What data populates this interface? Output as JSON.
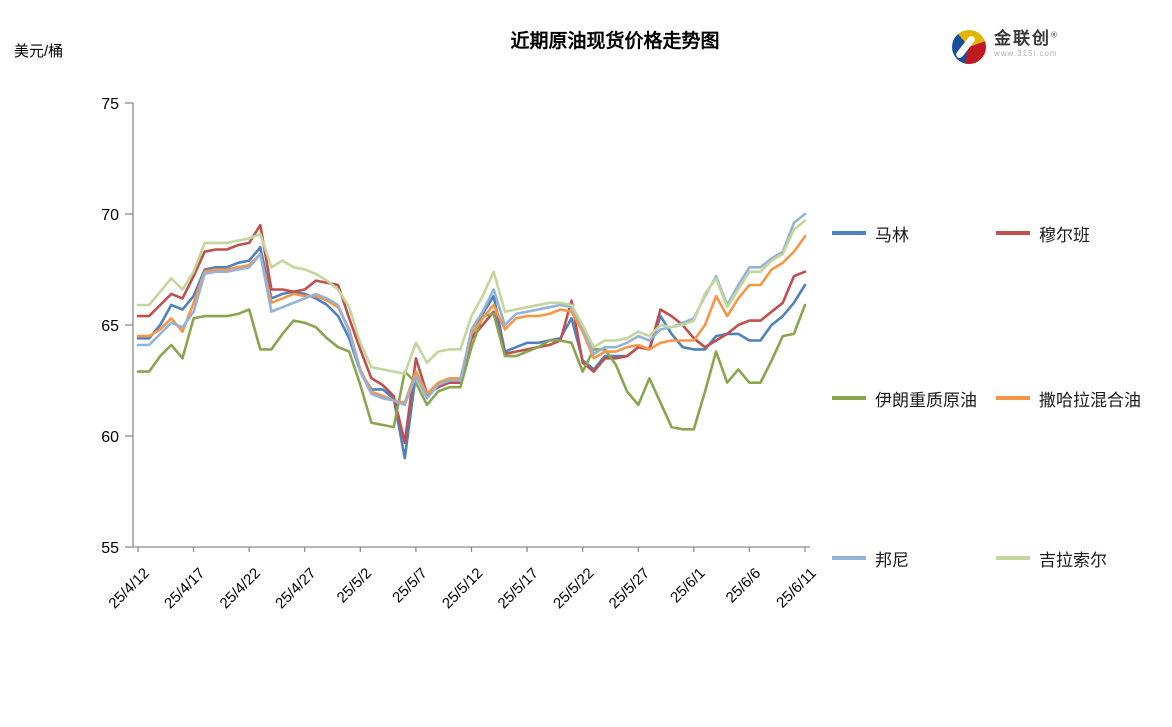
{
  "header": {
    "unit_label": "美元/桶"
  },
  "logo": {
    "name": "金联创",
    "reg": "®",
    "url": "www.315i.com",
    "colors": {
      "blue": "#1A4E9C",
      "yellow": "#E3B505",
      "red": "#C01920"
    }
  },
  "chart_data": {
    "type": "line",
    "title": "近期原油现货价格走势图",
    "ylabel": "美元/桶",
    "xlabel": "",
    "ylim": [
      55,
      75
    ],
    "yticks": [
      55,
      60,
      65,
      70,
      75
    ],
    "grid": false,
    "legend_position": "right",
    "x_tick_every": 5,
    "x_tick_labels": [
      "25/4/12",
      "25/4/17",
      "25/4/22",
      "25/4/27",
      "25/5/2",
      "25/5/7",
      "25/5/12",
      "25/5/17",
      "25/5/22",
      "25/5/27",
      "25/6/1",
      "25/6/6",
      "25/6/11"
    ],
    "axis_color": "#8C8C8C",
    "series": [
      {
        "name": "马林",
        "color": "#4F81BD",
        "values": [
          64.4,
          64.4,
          65.0,
          65.9,
          65.7,
          66.3,
          67.5,
          67.6,
          67.6,
          67.8,
          67.9,
          68.5,
          66.2,
          66.4,
          66.5,
          66.4,
          66.2,
          65.9,
          65.4,
          64.4,
          62.9,
          62.1,
          62.1,
          61.7,
          59.0,
          62.8,
          61.8,
          62.3,
          62.5,
          62.5,
          64.5,
          65.5,
          66.3,
          63.8,
          64.0,
          64.2,
          64.2,
          64.3,
          64.4,
          65.3,
          63.4,
          63.0,
          63.6,
          63.6,
          63.6,
          64.0,
          63.9,
          65.4,
          64.6,
          64.0,
          63.9,
          63.9,
          64.5,
          64.6,
          64.6,
          64.3,
          64.3,
          65.0,
          65.4,
          66.0,
          66.8
        ]
      },
      {
        "name": "穆尔班",
        "color": "#C0504D",
        "values": [
          65.4,
          65.4,
          65.9,
          66.4,
          66.2,
          67.2,
          68.3,
          68.4,
          68.4,
          68.6,
          68.7,
          69.5,
          66.6,
          66.6,
          66.5,
          66.6,
          67.0,
          66.9,
          66.8,
          65.3,
          63.9,
          62.6,
          62.3,
          61.8,
          59.7,
          63.5,
          61.9,
          62.2,
          62.4,
          62.4,
          64.4,
          65.0,
          65.6,
          63.7,
          63.8,
          63.9,
          64.0,
          64.1,
          64.3,
          66.1,
          63.3,
          62.9,
          63.5,
          63.5,
          63.6,
          64.0,
          63.9,
          65.7,
          65.4,
          65.0,
          64.4,
          64.0,
          64.3,
          64.6,
          65.0,
          65.2,
          65.2,
          65.6,
          66.0,
          67.2,
          67.4
        ]
      },
      {
        "name": "伊朗重质原油",
        "color": "#89A54E",
        "values": [
          62.9,
          62.9,
          63.6,
          64.1,
          63.5,
          65.3,
          65.4,
          65.4,
          65.4,
          65.5,
          65.7,
          63.9,
          63.9,
          64.6,
          65.2,
          65.1,
          64.9,
          64.4,
          64.0,
          63.8,
          62.3,
          60.6,
          60.5,
          60.4,
          62.9,
          62.4,
          61.4,
          62.0,
          62.2,
          62.2,
          64.0,
          65.4,
          65.5,
          63.6,
          63.6,
          63.8,
          64.0,
          64.3,
          64.3,
          64.2,
          62.9,
          63.9,
          63.9,
          63.2,
          62.0,
          61.4,
          62.6,
          61.5,
          60.4,
          60.3,
          60.3,
          62.0,
          63.8,
          62.4,
          63.0,
          62.4,
          62.4,
          63.4,
          64.5,
          64.6,
          65.9
        ]
      },
      {
        "name": "撒哈拉混合油",
        "color": "#F79646",
        "values": [
          64.5,
          64.5,
          64.8,
          65.3,
          64.7,
          66.0,
          67.4,
          67.5,
          67.5,
          67.6,
          67.7,
          68.2,
          66.0,
          66.2,
          66.4,
          66.3,
          66.3,
          66.1,
          65.8,
          64.8,
          63.0,
          62.0,
          61.8,
          61.6,
          61.5,
          62.9,
          61.9,
          62.4,
          62.6,
          62.6,
          64.6,
          65.3,
          65.9,
          64.8,
          65.3,
          65.4,
          65.4,
          65.5,
          65.7,
          65.6,
          64.7,
          63.5,
          63.8,
          63.8,
          64.0,
          64.1,
          63.9,
          64.2,
          64.3,
          64.3,
          64.3,
          65.0,
          66.3,
          65.4,
          66.2,
          66.8,
          66.8,
          67.5,
          67.8,
          68.3,
          69.0
        ]
      },
      {
        "name": "邦尼",
        "color": "#95B3D7",
        "values": [
          64.1,
          64.1,
          64.6,
          65.1,
          64.9,
          65.6,
          67.3,
          67.4,
          67.4,
          67.5,
          67.6,
          68.2,
          65.6,
          65.8,
          66.0,
          66.2,
          66.4,
          66.2,
          65.9,
          64.7,
          62.9,
          61.9,
          61.7,
          61.6,
          61.4,
          62.7,
          61.7,
          62.3,
          62.5,
          62.5,
          64.8,
          65.6,
          66.6,
          65.0,
          65.5,
          65.6,
          65.7,
          65.8,
          65.9,
          65.8,
          64.9,
          63.7,
          64.0,
          64.0,
          64.2,
          64.5,
          64.3,
          64.8,
          64.9,
          65.1,
          65.3,
          66.3,
          67.2,
          65.9,
          66.8,
          67.6,
          67.6,
          68.0,
          68.3,
          69.6,
          70.0
        ]
      },
      {
        "name": "吉拉索尔",
        "color": "#C3D69B",
        "values": [
          65.9,
          65.9,
          66.5,
          67.1,
          66.6,
          67.4,
          68.7,
          68.7,
          68.7,
          68.8,
          68.9,
          69.1,
          67.6,
          67.9,
          67.6,
          67.5,
          67.3,
          67.0,
          66.6,
          65.8,
          64.2,
          63.1,
          63.0,
          62.9,
          62.8,
          64.2,
          63.3,
          63.8,
          63.9,
          63.9,
          65.4,
          66.3,
          67.4,
          65.6,
          65.7,
          65.8,
          65.9,
          66.0,
          66.0,
          65.9,
          65.0,
          64.0,
          64.3,
          64.3,
          64.4,
          64.7,
          64.5,
          65.0,
          64.9,
          65.0,
          65.2,
          66.4,
          67.1,
          65.8,
          66.6,
          67.4,
          67.4,
          67.9,
          68.2,
          69.3,
          69.7
        ]
      }
    ],
    "legend_rows": [
      [
        "马林",
        "穆尔班"
      ],
      [
        "伊朗重质原油",
        "撒哈拉混合油"
      ],
      [
        "邦尼",
        "吉拉索尔"
      ]
    ]
  }
}
